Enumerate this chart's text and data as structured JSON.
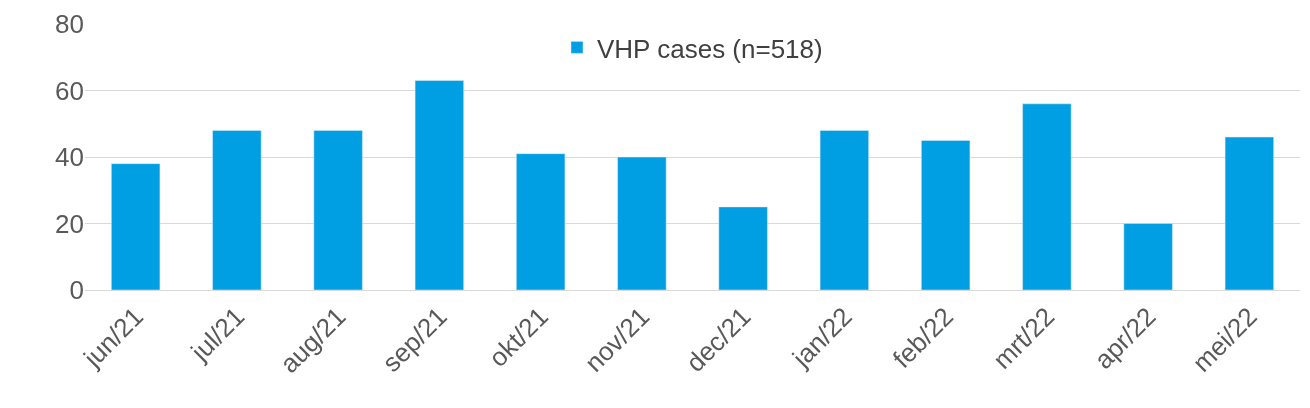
{
  "chart_data": {
    "type": "bar",
    "categories": [
      "jun/21",
      "jul/21",
      "aug/21",
      "sep/21",
      "okt/21",
      "nov/21",
      "dec/21",
      "jan/22",
      "feb/22",
      "mrt/22",
      "apr/22",
      "mei/22"
    ],
    "series": [
      {
        "name": "VHP cases (n=518)",
        "color": "#009fe3",
        "values": [
          38,
          48,
          48,
          63,
          41,
          40,
          25,
          48,
          45,
          56,
          20,
          46
        ]
      }
    ],
    "ylim": [
      0,
      80
    ],
    "yticks": [
      0,
      20,
      40,
      60,
      80
    ],
    "grid": "y",
    "legend": "top"
  }
}
